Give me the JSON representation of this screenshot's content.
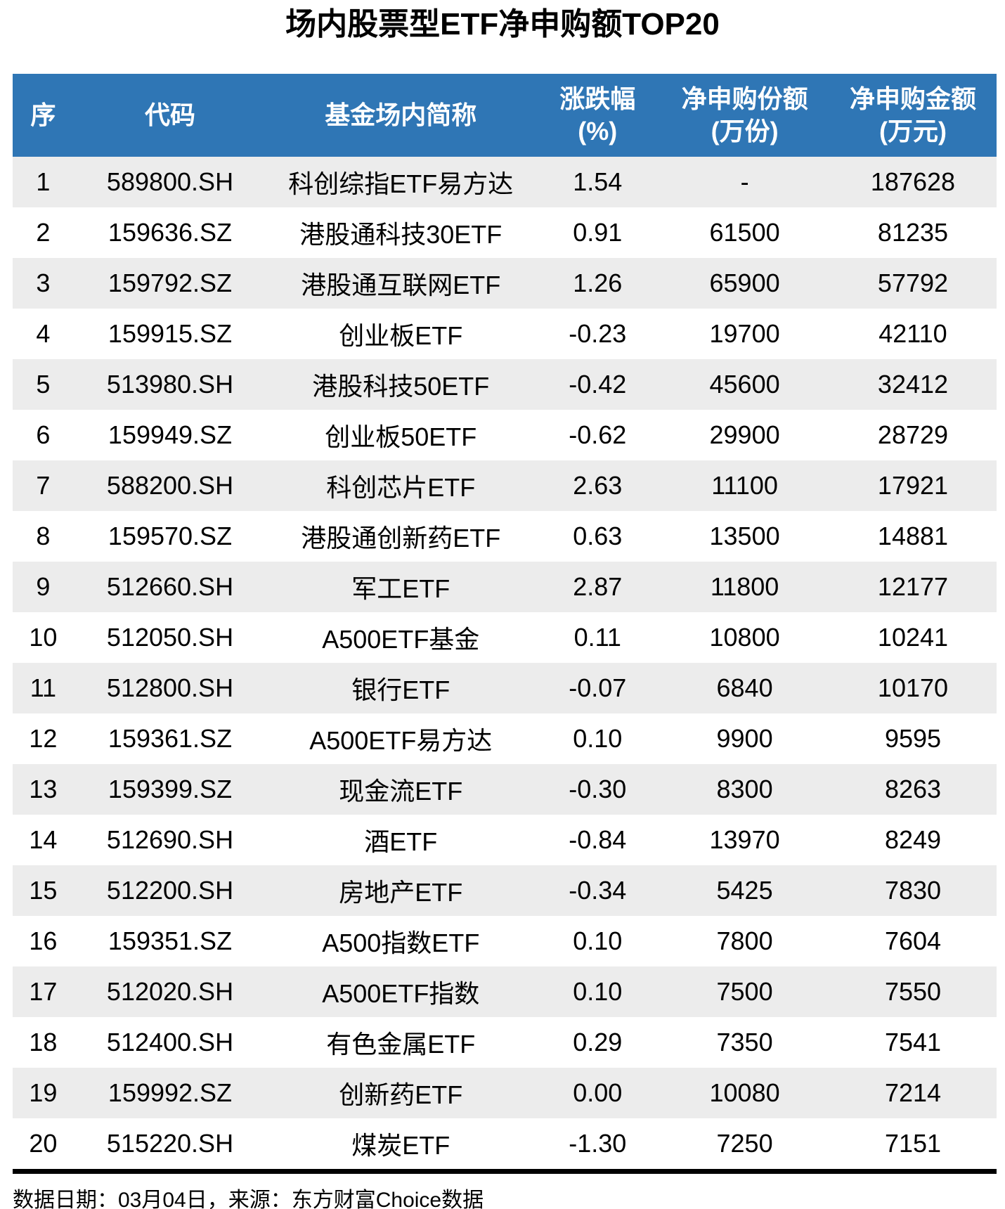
{
  "page": {
    "title": "场内股票型ETF净申购额TOP20",
    "footer_note": "数据日期：03月04日，来源：东方财富Choice数据"
  },
  "colors": {
    "header_bg": "#2F76B5",
    "header_text": "#FFFFFF",
    "row_stripe_bg": "#ECECEC",
    "row_bg": "#FFFFFF",
    "divider": "#000000",
    "body_text": "#000000"
  },
  "table": {
    "headers": [
      {
        "line1": "序",
        "line2": ""
      },
      {
        "line1": "代码",
        "line2": ""
      },
      {
        "line1": "基金场内简称",
        "line2": ""
      },
      {
        "line1": "涨跌幅",
        "line2": "(%)"
      },
      {
        "line1": "净申购份额",
        "line2": "(万份)"
      },
      {
        "line1": "净申购金额",
        "line2": "(万元)"
      }
    ],
    "rows": [
      [
        "1",
        "589800.SH",
        "科创综指ETF易方达",
        "1.54",
        "-",
        "187628"
      ],
      [
        "2",
        "159636.SZ",
        "港股通科技30ETF",
        "0.91",
        "61500",
        "81235"
      ],
      [
        "3",
        "159792.SZ",
        "港股通互联网ETF",
        "1.26",
        "65900",
        "57792"
      ],
      [
        "4",
        "159915.SZ",
        "创业板ETF",
        "-0.23",
        "19700",
        "42110"
      ],
      [
        "5",
        "513980.SH",
        "港股科技50ETF",
        "-0.42",
        "45600",
        "32412"
      ],
      [
        "6",
        "159949.SZ",
        "创业板50ETF",
        "-0.62",
        "29900",
        "28729"
      ],
      [
        "7",
        "588200.SH",
        "科创芯片ETF",
        "2.63",
        "11100",
        "17921"
      ],
      [
        "8",
        "159570.SZ",
        "港股通创新药ETF",
        "0.63",
        "13500",
        "14881"
      ],
      [
        "9",
        "512660.SH",
        "军工ETF",
        "2.87",
        "11800",
        "12177"
      ],
      [
        "10",
        "512050.SH",
        "A500ETF基金",
        "0.11",
        "10800",
        "10241"
      ],
      [
        "11",
        "512800.SH",
        "银行ETF",
        "-0.07",
        "6840",
        "10170"
      ],
      [
        "12",
        "159361.SZ",
        "A500ETF易方达",
        "0.10",
        "9900",
        "9595"
      ],
      [
        "13",
        "159399.SZ",
        "现金流ETF",
        "-0.30",
        "8300",
        "8263"
      ],
      [
        "14",
        "512690.SH",
        "酒ETF",
        "-0.84",
        "13970",
        "8249"
      ],
      [
        "15",
        "512200.SH",
        "房地产ETF",
        "-0.34",
        "5425",
        "7830"
      ],
      [
        "16",
        "159351.SZ",
        "A500指数ETF",
        "0.10",
        "7800",
        "7604"
      ],
      [
        "17",
        "512020.SH",
        "A500ETF指数",
        "0.10",
        "7500",
        "7550"
      ],
      [
        "18",
        "512400.SH",
        "有色金属ETF",
        "0.29",
        "7350",
        "7541"
      ],
      [
        "19",
        "159992.SZ",
        "创新药ETF",
        "0.00",
        "10080",
        "7214"
      ],
      [
        "20",
        "515220.SH",
        "煤炭ETF",
        "-1.30",
        "7250",
        "7151"
      ]
    ]
  },
  "chart_data": {
    "type": "table",
    "title": "场内股票型ETF净申购额TOP20",
    "columns": [
      "序",
      "代码",
      "基金场内简称",
      "涨跌幅(%)",
      "净申购份额(万份)",
      "净申购金额(万元)"
    ],
    "rows": [
      [
        "1",
        "589800.SH",
        "科创综指ETF易方达",
        "1.54",
        null,
        187628
      ],
      [
        "2",
        "159636.SZ",
        "港股通科技30ETF",
        "0.91",
        61500,
        81235
      ],
      [
        "3",
        "159792.SZ",
        "港股通互联网ETF",
        "1.26",
        65900,
        57792
      ],
      [
        "4",
        "159915.SZ",
        "创业板ETF",
        "-0.23",
        19700,
        42110
      ],
      [
        "5",
        "513980.SH",
        "港股科技50ETF",
        "-0.42",
        45600,
        32412
      ],
      [
        "6",
        "159949.SZ",
        "创业板50ETF",
        "-0.62",
        29900,
        28729
      ],
      [
        "7",
        "588200.SH",
        "科创芯片ETF",
        "2.63",
        11100,
        17921
      ],
      [
        "8",
        "159570.SZ",
        "港股通创新药ETF",
        "0.63",
        13500,
        14881
      ],
      [
        "9",
        "512660.SH",
        "军工ETF",
        "2.87",
        11800,
        12177
      ],
      [
        "10",
        "512050.SH",
        "A500ETF基金",
        "0.11",
        10800,
        10241
      ],
      [
        "11",
        "512800.SH",
        "银行ETF",
        "-0.07",
        6840,
        10170
      ],
      [
        "12",
        "159361.SZ",
        "A500ETF易方达",
        "0.10",
        9900,
        9595
      ],
      [
        "13",
        "159399.SZ",
        "现金流ETF",
        "-0.30",
        8300,
        8263
      ],
      [
        "14",
        "512690.SH",
        "酒ETF",
        "-0.84",
        13970,
        8249
      ],
      [
        "15",
        "512200.SH",
        "房地产ETF",
        "-0.34",
        5425,
        7830
      ],
      [
        "16",
        "159351.SZ",
        "A500指数ETF",
        "0.10",
        7800,
        7604
      ],
      [
        "17",
        "512020.SH",
        "A500ETF指数",
        "0.10",
        7500,
        7550
      ],
      [
        "18",
        "512400.SH",
        "有色金属ETF",
        "0.29",
        7350,
        7541
      ],
      [
        "19",
        "159992.SZ",
        "创新药ETF",
        "0.00",
        10080,
        7214
      ],
      [
        "20",
        "515220.SH",
        "煤炭ETF",
        "-1.30",
        7250,
        7151
      ]
    ],
    "footnote": "数据日期：03月04日，来源：东方财富Choice数据"
  }
}
